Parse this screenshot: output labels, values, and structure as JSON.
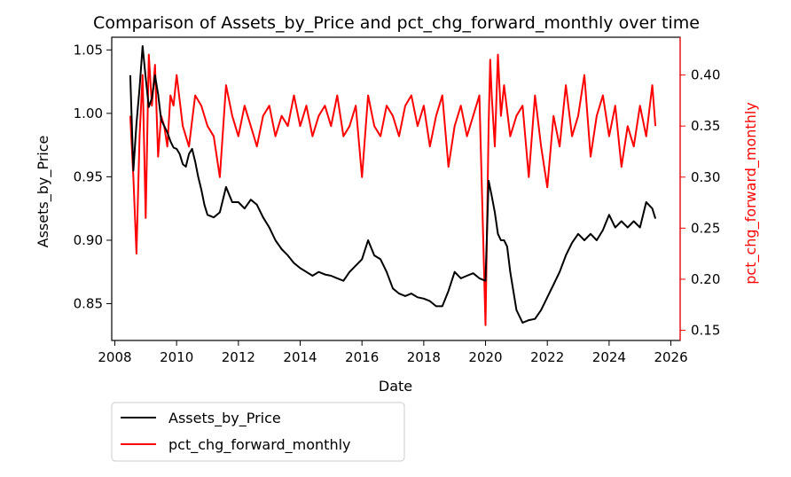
{
  "chart_data": {
    "type": "line",
    "title": "Comparison of Assets_by_Price and pct_chg_forward_monthly over time",
    "xlabel": "Date",
    "ylabel": "Assets_by_Price",
    "ylabel_right": "pct_chg_forward_monthly",
    "xlim": [
      2007.9,
      2026.3
    ],
    "ylim": [
      0.821,
      1.06
    ],
    "ylim_right": [
      0.14,
      0.437
    ],
    "x_ticks": [
      2008,
      2010,
      2012,
      2014,
      2016,
      2018,
      2020,
      2022,
      2024,
      2026
    ],
    "y_ticks": [
      0.85,
      0.9,
      0.95,
      1.0,
      1.05
    ],
    "y_ticks_right": [
      0.15,
      0.2,
      0.25,
      0.3,
      0.35,
      0.4
    ],
    "grid": false,
    "legend": {
      "placement": "below-left",
      "entries": [
        "Assets_by_Price",
        "pct_chg_forward_monthly"
      ]
    },
    "series": [
      {
        "name": "Assets_by_Price",
        "color": "#000000",
        "axis": "left",
        "x": [
          2008.5,
          2008.6,
          2008.7,
          2008.8,
          2008.9,
          2009.0,
          2009.1,
          2009.2,
          2009.3,
          2009.4,
          2009.5,
          2009.6,
          2009.7,
          2009.8,
          2009.9,
          2010.0,
          2010.1,
          2010.2,
          2010.3,
          2010.4,
          2010.5,
          2010.6,
          2010.7,
          2010.8,
          2010.9,
          2011.0,
          2011.2,
          2011.4,
          2011.6,
          2011.8,
          2012.0,
          2012.2,
          2012.4,
          2012.6,
          2012.8,
          2013.0,
          2013.2,
          2013.4,
          2013.6,
          2013.8,
          2014.0,
          2014.2,
          2014.4,
          2014.6,
          2014.8,
          2015.0,
          2015.2,
          2015.4,
          2015.6,
          2015.8,
          2016.0,
          2016.2,
          2016.4,
          2016.6,
          2016.8,
          2017.0,
          2017.2,
          2017.4,
          2017.6,
          2017.8,
          2018.0,
          2018.2,
          2018.4,
          2018.6,
          2018.8,
          2019.0,
          2019.2,
          2019.4,
          2019.6,
          2019.8,
          2020.0,
          2020.1,
          2020.2,
          2020.3,
          2020.4,
          2020.5,
          2020.6,
          2020.7,
          2020.8,
          2020.9,
          2021.0,
          2021.2,
          2021.4,
          2021.6,
          2021.8,
          2022.0,
          2022.2,
          2022.4,
          2022.6,
          2022.8,
          2023.0,
          2023.2,
          2023.4,
          2023.6,
          2023.8,
          2024.0,
          2024.2,
          2024.4,
          2024.6,
          2024.8,
          2025.0,
          2025.2,
          2025.4,
          2025.5
        ],
        "values": [
          1.03,
          0.955,
          0.992,
          1.02,
          1.053,
          1.028,
          1.005,
          1.012,
          1.03,
          1.015,
          0.995,
          0.99,
          0.985,
          0.978,
          0.973,
          0.972,
          0.968,
          0.96,
          0.958,
          0.968,
          0.972,
          0.962,
          0.95,
          0.94,
          0.928,
          0.92,
          0.918,
          0.922,
          0.942,
          0.93,
          0.93,
          0.925,
          0.932,
          0.928,
          0.918,
          0.91,
          0.9,
          0.893,
          0.888,
          0.882,
          0.878,
          0.875,
          0.872,
          0.875,
          0.873,
          0.872,
          0.87,
          0.868,
          0.875,
          0.88,
          0.885,
          0.9,
          0.888,
          0.885,
          0.875,
          0.862,
          0.858,
          0.856,
          0.858,
          0.855,
          0.854,
          0.852,
          0.848,
          0.848,
          0.86,
          0.875,
          0.87,
          0.872,
          0.874,
          0.87,
          0.868,
          0.947,
          0.935,
          0.922,
          0.905,
          0.9,
          0.9,
          0.895,
          0.875,
          0.86,
          0.845,
          0.835,
          0.837,
          0.838,
          0.845,
          0.855,
          0.865,
          0.875,
          0.888,
          0.898,
          0.905,
          0.9,
          0.905,
          0.9,
          0.908,
          0.92,
          0.91,
          0.915,
          0.91,
          0.915,
          0.91,
          0.93,
          0.925,
          0.917
        ]
      },
      {
        "name": "pct_chg_forward_monthly",
        "color": "#ff0000",
        "axis": "right",
        "x": [
          2008.5,
          2008.6,
          2008.7,
          2008.8,
          2008.9,
          2009.0,
          2009.1,
          2009.2,
          2009.3,
          2009.4,
          2009.5,
          2009.6,
          2009.7,
          2009.8,
          2009.9,
          2010.0,
          2010.2,
          2010.4,
          2010.6,
          2010.8,
          2011.0,
          2011.2,
          2011.4,
          2011.6,
          2011.8,
          2012.0,
          2012.2,
          2012.4,
          2012.6,
          2012.8,
          2013.0,
          2013.2,
          2013.4,
          2013.6,
          2013.8,
          2014.0,
          2014.2,
          2014.4,
          2014.6,
          2014.8,
          2015.0,
          2015.2,
          2015.4,
          2015.6,
          2015.8,
          2016.0,
          2016.2,
          2016.4,
          2016.6,
          2016.8,
          2017.0,
          2017.2,
          2017.4,
          2017.6,
          2017.8,
          2018.0,
          2018.2,
          2018.4,
          2018.6,
          2018.8,
          2019.0,
          2019.2,
          2019.4,
          2019.6,
          2019.8,
          2020.0,
          2020.1,
          2020.15,
          2020.2,
          2020.3,
          2020.4,
          2020.5,
          2020.6,
          2020.8,
          2021.0,
          2021.2,
          2021.4,
          2021.6,
          2021.8,
          2022.0,
          2022.2,
          2022.4,
          2022.6,
          2022.8,
          2023.0,
          2023.2,
          2023.4,
          2023.6,
          2023.8,
          2024.0,
          2024.2,
          2024.4,
          2024.6,
          2024.8,
          2025.0,
          2025.2,
          2025.4,
          2025.5
        ],
        "values": [
          0.36,
          0.3,
          0.225,
          0.34,
          0.4,
          0.26,
          0.42,
          0.37,
          0.41,
          0.32,
          0.36,
          0.35,
          0.33,
          0.38,
          0.37,
          0.4,
          0.35,
          0.33,
          0.38,
          0.37,
          0.35,
          0.34,
          0.3,
          0.39,
          0.36,
          0.34,
          0.37,
          0.35,
          0.33,
          0.36,
          0.37,
          0.34,
          0.36,
          0.35,
          0.38,
          0.35,
          0.37,
          0.34,
          0.36,
          0.37,
          0.35,
          0.38,
          0.34,
          0.35,
          0.37,
          0.3,
          0.38,
          0.35,
          0.34,
          0.37,
          0.36,
          0.34,
          0.37,
          0.38,
          0.35,
          0.37,
          0.33,
          0.36,
          0.38,
          0.31,
          0.35,
          0.37,
          0.34,
          0.36,
          0.38,
          0.155,
          0.35,
          0.415,
          0.38,
          0.33,
          0.42,
          0.36,
          0.39,
          0.34,
          0.36,
          0.37,
          0.3,
          0.38,
          0.33,
          0.29,
          0.36,
          0.33,
          0.39,
          0.34,
          0.36,
          0.4,
          0.32,
          0.36,
          0.38,
          0.34,
          0.37,
          0.31,
          0.35,
          0.33,
          0.37,
          0.34,
          0.39,
          0.35
        ]
      }
    ]
  }
}
